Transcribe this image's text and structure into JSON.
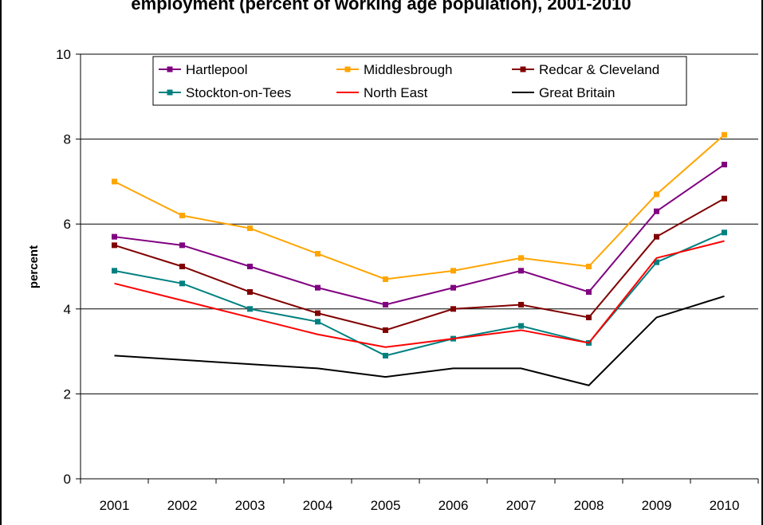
{
  "chart_data": {
    "type": "line",
    "title": "employment (percent of working age population), 2001-2010",
    "xlabel": "",
    "ylabel": "percent",
    "categories": [
      "2001",
      "2002",
      "2003",
      "2004",
      "2005",
      "2006",
      "2007",
      "2008",
      "2009",
      "2010"
    ],
    "ylim": [
      0,
      10
    ],
    "yticks": [
      "0",
      "2",
      "4",
      "6",
      "8",
      "10"
    ],
    "grid": true,
    "legend_position": "top",
    "series": [
      {
        "name": "Hartlepool",
        "color": "#800080",
        "marker": "square",
        "values": [
          5.7,
          5.5,
          5.0,
          4.5,
          4.1,
          4.5,
          4.9,
          4.4,
          6.3,
          7.4
        ]
      },
      {
        "name": "Middlesbrough",
        "color": "#ffa500",
        "marker": "square",
        "values": [
          7.0,
          6.2,
          5.9,
          5.3,
          4.7,
          4.9,
          5.2,
          5.0,
          6.7,
          8.1
        ]
      },
      {
        "name": "Redcar & Cleveland",
        "color": "#800000",
        "marker": "square",
        "values": [
          5.5,
          5.0,
          4.4,
          3.9,
          3.5,
          4.0,
          4.1,
          3.8,
          5.7,
          6.6
        ]
      },
      {
        "name": "Stockton-on-Tees",
        "color": "#008080",
        "marker": "square",
        "values": [
          4.9,
          4.6,
          4.0,
          3.7,
          2.9,
          3.3,
          3.6,
          3.2,
          5.1,
          5.8
        ]
      },
      {
        "name": "North East",
        "color": "#ff0000",
        "marker": "none",
        "values": [
          4.6,
          4.2,
          3.8,
          3.4,
          3.1,
          3.3,
          3.5,
          3.2,
          5.2,
          5.6
        ]
      },
      {
        "name": "Great Britain",
        "color": "#000000",
        "marker": "none",
        "values": [
          2.9,
          2.8,
          2.7,
          2.6,
          2.4,
          2.6,
          2.6,
          2.2,
          3.8,
          4.3
        ]
      }
    ]
  }
}
